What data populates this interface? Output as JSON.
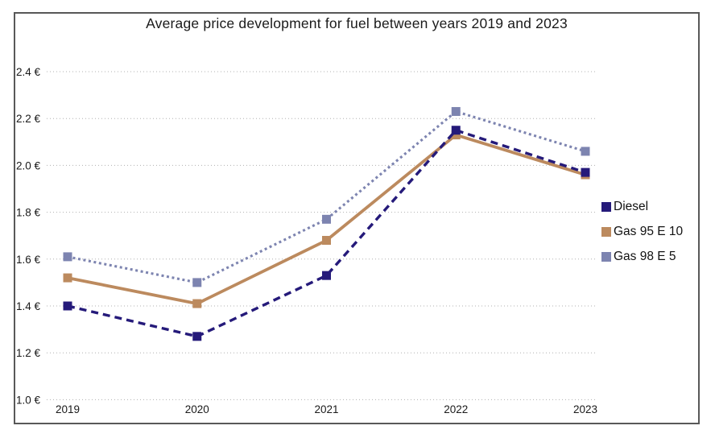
{
  "chart_data": {
    "type": "line",
    "title": "Average price development for fuel between years 2019 and 2023",
    "x_categories": [
      "2019",
      "2020",
      "2021",
      "2022",
      "2023"
    ],
    "xlabel": "",
    "ylabel": "",
    "ylim": [
      1.0,
      2.4
    ],
    "y_tick_step": 0.2,
    "currency_suffix": " €",
    "y_ticks": [
      {
        "value": 1.0,
        "label": "1.0 €"
      },
      {
        "value": 1.2,
        "label": "1.2 €"
      },
      {
        "value": 1.4,
        "label": "1.4 €"
      },
      {
        "value": 1.6,
        "label": "1.6 €"
      },
      {
        "value": 1.8,
        "label": "1.8 €"
      },
      {
        "value": 2.0,
        "label": "2.0 €"
      },
      {
        "value": 2.2,
        "label": "2.2 €"
      },
      {
        "value": 2.4,
        "label": "2.4 €"
      }
    ],
    "grid": "dotted-horizontal",
    "grid_color": "#b0b0b0",
    "legend_position": "right",
    "series": [
      {
        "name": "Diesel",
        "color": "#251A7A",
        "style": "dashed",
        "marker": "square",
        "values": [
          1.4,
          1.27,
          1.53,
          2.15,
          1.97
        ]
      },
      {
        "name": "Gas 95 E 10",
        "color": "#BC8A5E",
        "style": "solid",
        "marker": "square",
        "values": [
          1.52,
          1.41,
          1.68,
          2.13,
          1.96
        ]
      },
      {
        "name": "Gas 98 E 5",
        "color": "#7D84B0",
        "style": "dotted",
        "marker": "square",
        "values": [
          1.61,
          1.5,
          1.77,
          2.23,
          2.06
        ]
      }
    ]
  }
}
